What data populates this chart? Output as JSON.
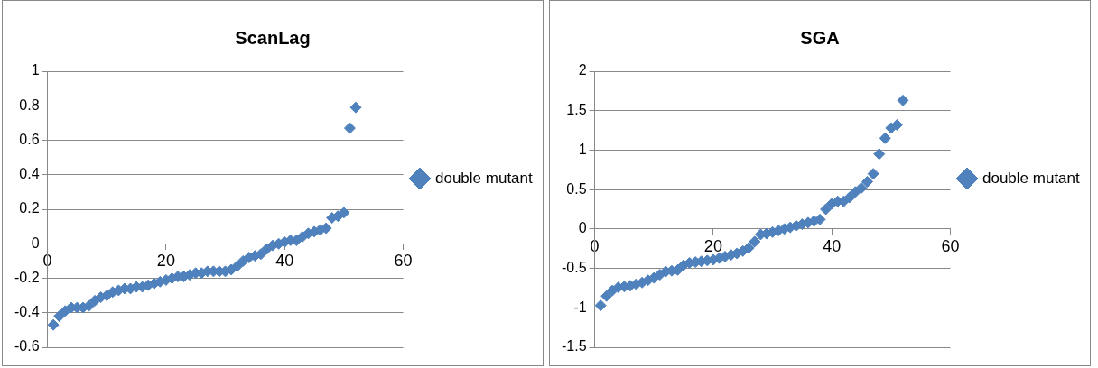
{
  "chart_data": [
    {
      "type": "scatter",
      "title": "ScanLag",
      "x": [
        1,
        2,
        3,
        4,
        5,
        6,
        7,
        8,
        9,
        10,
        11,
        12,
        13,
        14,
        15,
        16,
        17,
        18,
        19,
        20,
        21,
        22,
        23,
        24,
        25,
        26,
        27,
        28,
        29,
        30,
        31,
        32,
        33,
        34,
        35,
        36,
        37,
        38,
        39,
        40,
        41,
        42,
        43,
        44,
        45,
        46,
        47,
        48,
        49,
        50,
        51,
        52
      ],
      "series": [
        {
          "name": "double mutant",
          "color": "#4f81bd",
          "values": [
            -0.47,
            -0.42,
            -0.39,
            -0.37,
            -0.37,
            -0.37,
            -0.36,
            -0.33,
            -0.31,
            -0.3,
            -0.28,
            -0.27,
            -0.26,
            -0.26,
            -0.25,
            -0.25,
            -0.24,
            -0.23,
            -0.22,
            -0.21,
            -0.2,
            -0.19,
            -0.19,
            -0.18,
            -0.17,
            -0.17,
            -0.16,
            -0.16,
            -0.16,
            -0.16,
            -0.15,
            -0.13,
            -0.1,
            -0.08,
            -0.07,
            -0.06,
            -0.03,
            -0.01,
            0,
            0.01,
            0.02,
            0.02,
            0.04,
            0.06,
            0.07,
            0.08,
            0.09,
            0.15,
            0.16,
            0.18,
            0.67,
            0.79
          ]
        }
      ],
      "xlim": [
        0,
        60
      ],
      "xticks": [
        0,
        20,
        40,
        60
      ],
      "ylim": [
        -0.6,
        1
      ],
      "yticks": [
        -0.6,
        -0.4,
        -0.2,
        0,
        0.2,
        0.4,
        0.6,
        0.8,
        1
      ],
      "grid": "y",
      "legend": "right",
      "marker": "diamond"
    },
    {
      "type": "scatter",
      "title": "SGA",
      "x": [
        1,
        2,
        3,
        4,
        5,
        6,
        7,
        8,
        9,
        10,
        11,
        12,
        13,
        14,
        15,
        16,
        17,
        18,
        19,
        20,
        21,
        22,
        23,
        24,
        25,
        26,
        27,
        28,
        29,
        30,
        31,
        32,
        33,
        34,
        35,
        36,
        37,
        38,
        39,
        40,
        41,
        42,
        43,
        44,
        45,
        46,
        47,
        48,
        49,
        50,
        51,
        52
      ],
      "series": [
        {
          "name": "double mutant",
          "color": "#4f81bd",
          "values": [
            -0.97,
            -0.85,
            -0.78,
            -0.74,
            -0.73,
            -0.72,
            -0.7,
            -0.68,
            -0.65,
            -0.62,
            -0.58,
            -0.54,
            -0.53,
            -0.52,
            -0.46,
            -0.43,
            -0.42,
            -0.41,
            -0.4,
            -0.39,
            -0.37,
            -0.35,
            -0.33,
            -0.31,
            -0.28,
            -0.24,
            -0.16,
            -0.07,
            -0.06,
            -0.04,
            -0.02,
            0,
            0.02,
            0.04,
            0.06,
            0.08,
            0.1,
            0.12,
            0.25,
            0.32,
            0.35,
            0.35,
            0.4,
            0.47,
            0.52,
            0.6,
            0.7,
            0.95,
            1.15,
            1.28,
            1.32,
            1.63
          ]
        }
      ],
      "xlim": [
        0,
        60
      ],
      "xticks": [
        0,
        20,
        40,
        60
      ],
      "ylim": [
        -1.5,
        2
      ],
      "yticks": [
        -1.5,
        -1,
        -0.5,
        0,
        0.5,
        1,
        1.5,
        2
      ],
      "grid": "y",
      "legend": "right",
      "marker": "diamond"
    }
  ]
}
